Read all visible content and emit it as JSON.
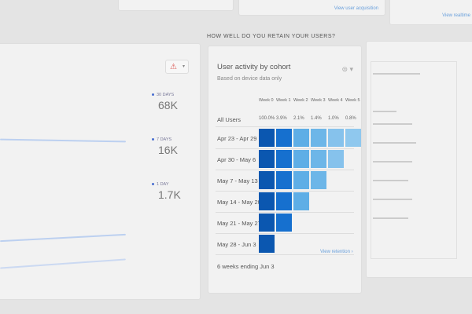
{
  "top_cards": {
    "link_1": "View user acquisition",
    "link_2": "View realtime"
  },
  "left_panel": {
    "legend": [
      {
        "label": "30 DAYS",
        "value": "68K"
      },
      {
        "label": "7 DAYS",
        "value": "16K"
      },
      {
        "label": "1 DAY",
        "value": "1.7K"
      }
    ],
    "warning_icon": "warning-triangle-icon",
    "series_color": "#4a6fd0"
  },
  "section_heading": "HOW WELL DO YOU RETAIN YOUR USERS?",
  "cohort_card": {
    "title": "User activity by cohort",
    "subtitle": "Based on device data only",
    "menu_icon": "compare-icon",
    "weeks": [
      "Week 0",
      "Week 1",
      "Week 2",
      "Week 3",
      "Week 4",
      "Week 5"
    ],
    "all_users_label": "All Users",
    "all_users_values": [
      "100.0%",
      "3.9%",
      "2.1%",
      "1.4%",
      "1.0%",
      "0.8%"
    ],
    "rows": [
      {
        "label": "Apr 23 - Apr 29",
        "weeks_shown": 6
      },
      {
        "label": "Apr 30 - May 6",
        "weeks_shown": 5
      },
      {
        "label": "May 7 - May 13",
        "weeks_shown": 4
      },
      {
        "label": "May 14 - May 20",
        "weeks_shown": 3
      },
      {
        "label": "May 21 - May 27",
        "weeks_shown": 2
      },
      {
        "label": "May 28 - Jun 3",
        "weeks_shown": 1
      }
    ],
    "cell_colors": [
      "#0b57b0",
      "#1670cf",
      "#5eaee6",
      "#6db6e8",
      "#86c2ec",
      "#8fc8ee"
    ],
    "footer": "6 weeks ending Jun 3",
    "view_link": "View retention"
  }
}
